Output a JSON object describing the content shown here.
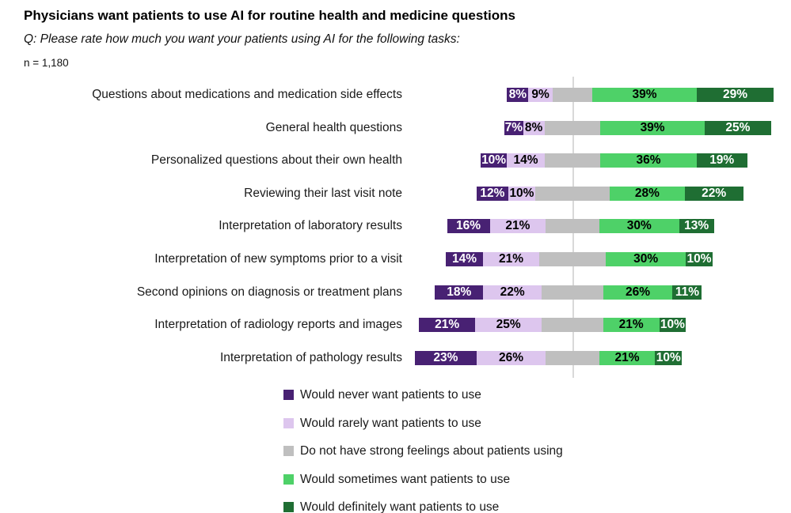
{
  "header": {
    "title": "Physicians want patients to use AI for routine health and medicine questions",
    "subtitle": "Q: Please rate how much you want your patients using AI for the following tasks:",
    "sample_size": "n = 1,180"
  },
  "chart_data": {
    "type": "bar",
    "variant": "diverging-stacked-horizontal",
    "title": "Physicians want patients to use AI for routine health and medicine questions",
    "value_suffix": "%",
    "axis_line_color": "#d9d9d9",
    "legend_position": "bottom-left",
    "categories": [
      "Questions about medications and medication side effects",
      "General health questions",
      "Personalized questions about their own health",
      "Reviewing their last visit note",
      "Interpretation of laboratory results",
      "Interpretation of new symptoms prior to a visit",
      "Second opinions on diagnosis or treatment plans",
      "Interpretation of radiology reports and images",
      "Interpretation of pathology results"
    ],
    "series": [
      {
        "key": "never",
        "name": "Would never want patients to use",
        "color": "#482173",
        "label_color": "#ffffff",
        "show_labels": true,
        "values": [
          8,
          7,
          10,
          12,
          16,
          14,
          18,
          21,
          23
        ]
      },
      {
        "key": "rarely",
        "name": "Would rarely want patients to use",
        "color": "#ddc6ee",
        "label_color": "#000000",
        "show_labels": true,
        "values": [
          9,
          8,
          14,
          10,
          21,
          21,
          22,
          25,
          26
        ]
      },
      {
        "key": "neutral",
        "name": "Do not have strong feelings about patients using",
        "color": "#bfbfbf",
        "label_color": "#000000",
        "show_labels": false,
        "values": [
          15,
          21,
          21,
          28,
          20,
          25,
          23,
          23,
          20
        ]
      },
      {
        "key": "sometimes",
        "name": "Would sometimes want patients to use",
        "color": "#4ed168",
        "label_color": "#000000",
        "show_labels": true,
        "values": [
          39,
          39,
          36,
          28,
          30,
          30,
          26,
          21,
          21
        ]
      },
      {
        "key": "definitely",
        "name": "Would definitely want patients to use",
        "color": "#1f6e33",
        "label_color": "#ffffff",
        "show_labels": true,
        "values": [
          29,
          25,
          19,
          22,
          13,
          10,
          11,
          10,
          10
        ]
      }
    ]
  }
}
